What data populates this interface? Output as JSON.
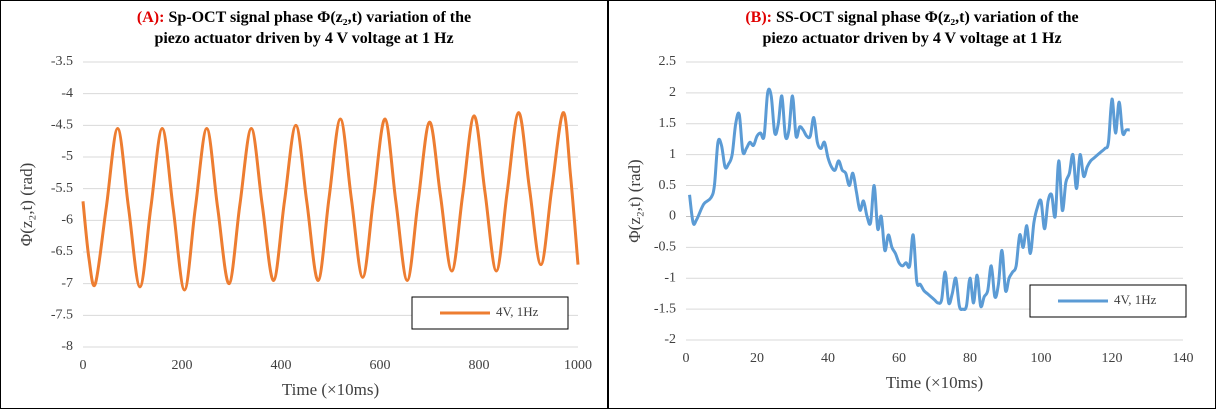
{
  "chart_data": [
    {
      "type": "line",
      "title_label": "(A):",
      "title": [
        "Sp-OCT signal phase Φ(z₂,t) variation of the",
        "piezo actuator driven by 4 V voltage at 1 Hz"
      ],
      "x_label": "Time (×10ms)",
      "y_label": "Φ(z₂,t) (rad)",
      "xlim": [
        0,
        1000
      ],
      "xticks": [
        0,
        200,
        400,
        600,
        800,
        1000
      ],
      "ylim": [
        -8,
        -3.5
      ],
      "yticks": [
        -3.5,
        -4,
        -4.5,
        -5,
        -5.5,
        -6,
        -6.5,
        -7,
        -7.5,
        -8
      ],
      "grid": true,
      "legend": "lower right",
      "x": [
        0,
        12,
        25,
        47,
        70,
        92,
        115,
        137,
        160,
        182,
        205,
        227,
        250,
        272,
        295,
        317,
        340,
        362,
        385,
        407,
        430,
        452,
        475,
        497,
        520,
        542,
        565,
        587,
        610,
        632,
        655,
        677,
        700,
        722,
        745,
        767,
        790,
        812,
        835,
        857,
        880,
        902,
        925,
        947,
        970,
        985,
        1000
      ],
      "series": [
        {
          "name": "4V, 1Hz",
          "color": "#ed7d31",
          "values": [
            -5.7,
            -6.6,
            -7.0,
            -5.8,
            -4.55,
            -5.8,
            -7.05,
            -5.8,
            -4.55,
            -5.8,
            -7.1,
            -5.8,
            -4.55,
            -5.8,
            -7.0,
            -5.75,
            -4.55,
            -5.75,
            -6.95,
            -5.7,
            -4.5,
            -5.7,
            -6.95,
            -5.65,
            -4.4,
            -5.65,
            -6.9,
            -5.65,
            -4.4,
            -5.7,
            -6.95,
            -5.7,
            -4.45,
            -5.6,
            -6.8,
            -5.6,
            -4.35,
            -5.55,
            -6.8,
            -5.55,
            -4.3,
            -5.5,
            -6.7,
            -5.5,
            -4.3,
            -5.3,
            -6.7
          ]
        }
      ]
    },
    {
      "type": "line",
      "title_label": "(B):",
      "title": [
        "SS-OCT signal phase Φ(z₂,t) variation of the",
        "piezo actuator driven by 4 V voltage at 1 Hz"
      ],
      "x_label": "Time (×10ms)",
      "y_label": "Φ(z₂,t) (rad)",
      "xlim": [
        0,
        140
      ],
      "xticks": [
        0,
        20,
        40,
        60,
        80,
        100,
        120,
        140
      ],
      "ylim": [
        -2,
        2.5
      ],
      "yticks": [
        2.5,
        2,
        1.5,
        1,
        0.5,
        0,
        -0.5,
        -1,
        -1.5,
        -2
      ],
      "grid": true,
      "legend": "lower right",
      "x": [
        1,
        2,
        3,
        5,
        7,
        8,
        9,
        10,
        11,
        12,
        13,
        14,
        15,
        16,
        17,
        18,
        19,
        20,
        21,
        22,
        23,
        24,
        25,
        26,
        27,
        28,
        29,
        30,
        31,
        32,
        33,
        34,
        35,
        36,
        37,
        38,
        39,
        40,
        41,
        42,
        43,
        44,
        45,
        46,
        47,
        48,
        49,
        50,
        51,
        52,
        53,
        54,
        55,
        56,
        57,
        58,
        59,
        60,
        61,
        62,
        63,
        64,
        65,
        66,
        67,
        68,
        69,
        70,
        71,
        72,
        73,
        74,
        75,
        76,
        77,
        78,
        79,
        80,
        81,
        82,
        83,
        84,
        85,
        86,
        87,
        88,
        89,
        90,
        91,
        92,
        93,
        94,
        95,
        96,
        97,
        98,
        99,
        100,
        101,
        102,
        103,
        104,
        105,
        106,
        107,
        108,
        109,
        110,
        111,
        112,
        113,
        114,
        115,
        116,
        117,
        118,
        119,
        120,
        121,
        122,
        123,
        124,
        125
      ],
      "series": [
        {
          "name": "4V, 1Hz",
          "color": "#5b9bd5",
          "values": [
            0.35,
            -0.1,
            -0.05,
            0.2,
            0.3,
            0.5,
            1.2,
            1.15,
            0.8,
            0.85,
            1.0,
            1.5,
            1.65,
            1.05,
            1.1,
            1.2,
            1.15,
            1.3,
            1.35,
            1.3,
            2.0,
            1.95,
            1.35,
            1.5,
            1.95,
            1.3,
            1.4,
            1.95,
            1.3,
            1.45,
            1.4,
            1.3,
            1.3,
            1.6,
            1.2,
            1.1,
            1.2,
            0.95,
            0.8,
            0.75,
            0.9,
            0.75,
            0.7,
            0.5,
            0.7,
            0.4,
            0.1,
            0.25,
            0.0,
            -0.1,
            0.5,
            -0.2,
            0.0,
            -0.55,
            -0.3,
            -0.5,
            -0.6,
            -0.75,
            -0.8,
            -0.75,
            -0.8,
            -0.3,
            -1.05,
            -1.1,
            -1.2,
            -1.25,
            -1.3,
            -1.35,
            -1.4,
            -1.35,
            -0.9,
            -1.4,
            -1.25,
            -1.0,
            -1.45,
            -1.5,
            -1.45,
            -1.0,
            -1.4,
            -0.95,
            -1.45,
            -1.3,
            -1.2,
            -0.8,
            -1.3,
            -1.1,
            -0.55,
            -1.2,
            -1.0,
            -0.9,
            -0.8,
            -0.3,
            -0.5,
            -0.15,
            -0.6,
            -0.1,
            0.15,
            0.25,
            -0.2,
            0.25,
            0.35,
            0.0,
            0.9,
            0.1,
            0.55,
            0.7,
            1.0,
            0.45,
            1.0,
            0.65,
            0.8,
            0.9,
            0.95,
            1.0,
            1.05,
            1.1,
            1.2,
            1.9,
            1.35,
            1.85,
            1.35,
            1.4,
            1.4
          ]
        }
      ]
    }
  ]
}
